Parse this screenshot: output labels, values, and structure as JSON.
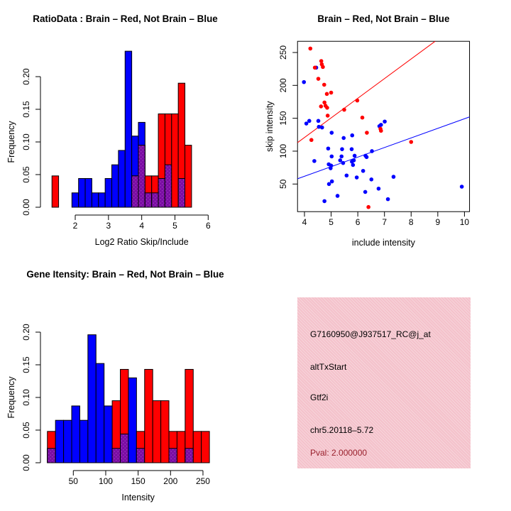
{
  "colors": {
    "red": "#ff0000",
    "blue": "#0000ff",
    "overlap_purple": "#7a0da3",
    "overlap_dot": "#a83ec9",
    "axis": "#000000",
    "title_text": "#000000",
    "pink_panel": "#f4c2cb",
    "pval_red": "#99202c"
  },
  "chart_data": [
    {
      "id": "ratio_hist",
      "type": "bar",
      "variant": "overlaid-histogram",
      "title": "RatioData : Brain – Red, Not Brain – Blue",
      "xlabel": "Log2 Ratio Skip/Include",
      "ylabel": "Frequency",
      "legend": {
        "red": "Brain",
        "blue": "Not Brain"
      },
      "x_ticks": [
        2,
        3,
        4,
        5,
        6
      ],
      "y_ticks": [
        {
          "v": 0.0,
          "label": "0.00"
        },
        {
          "v": 0.05,
          "label": "0.05"
        },
        {
          "v": 0.1,
          "label": "0.10"
        },
        {
          "v": 0.15,
          "label": "0.15"
        },
        {
          "v": 0.2,
          "label": "0.20"
        }
      ],
      "xlim": [
        1.1,
        6.1
      ],
      "ylim": [
        0,
        0.245
      ],
      "bin_width": 0.2,
      "bins": [
        {
          "x": 1.3,
          "blue": 0,
          "red": 0.048
        },
        {
          "x": 1.9,
          "blue": 0.022,
          "red": 0
        },
        {
          "x": 2.1,
          "blue": 0.044,
          "red": 0
        },
        {
          "x": 2.3,
          "blue": 0.044,
          "red": 0
        },
        {
          "x": 2.5,
          "blue": 0.022,
          "red": 0
        },
        {
          "x": 2.7,
          "blue": 0.022,
          "red": 0
        },
        {
          "x": 2.9,
          "blue": 0.044,
          "red": 0
        },
        {
          "x": 3.1,
          "blue": 0.065,
          "red": 0
        },
        {
          "x": 3.3,
          "blue": 0.087,
          "red": 0
        },
        {
          "x": 3.5,
          "blue": 0.239,
          "red": 0
        },
        {
          "x": 3.7,
          "blue": 0.109,
          "red": 0.048
        },
        {
          "x": 3.9,
          "blue": 0.13,
          "red": 0.095
        },
        {
          "x": 4.1,
          "blue": 0.022,
          "red": 0.048
        },
        {
          "x": 4.3,
          "blue": 0.022,
          "red": 0.048
        },
        {
          "x": 4.5,
          "blue": 0.044,
          "red": 0.143
        },
        {
          "x": 4.7,
          "blue": 0.065,
          "red": 0.143
        },
        {
          "x": 4.9,
          "blue": 0,
          "red": 0.143
        },
        {
          "x": 5.1,
          "blue": 0.044,
          "red": 0.19
        },
        {
          "x": 5.3,
          "blue": 0,
          "red": 0.095
        }
      ]
    },
    {
      "id": "intensity_scatter",
      "type": "scatter",
      "title": "Brain – Red, Not Brain – Blue",
      "xlabel": "include intensity",
      "ylabel": "skip intensity",
      "legend": {
        "red": "Brain",
        "blue": "Not Brain"
      },
      "x_ticks": [
        4,
        5,
        6,
        7,
        8,
        9,
        10
      ],
      "y_ticks": [
        {
          "v": 50,
          "label": "50"
        },
        {
          "v": 100,
          "label": "100"
        },
        {
          "v": 150,
          "label": "150"
        },
        {
          "v": 200,
          "label": "200"
        },
        {
          "v": 250,
          "label": "250"
        }
      ],
      "xlim": [
        3.74,
        10.19
      ],
      "ylim": [
        8,
        267
      ],
      "red_line": [
        [
          3.74,
          113
        ],
        [
          8.9,
          267
        ]
      ],
      "blue_line": [
        [
          3.74,
          58
        ],
        [
          10.19,
          152
        ]
      ],
      "red_points": [
        [
          4.22,
          256
        ],
        [
          4.26,
          117
        ],
        [
          4.39,
          227
        ],
        [
          4.52,
          210
        ],
        [
          4.62,
          168
        ],
        [
          4.63,
          237
        ],
        [
          4.65,
          232
        ],
        [
          4.69,
          228
        ],
        [
          4.74,
          201
        ],
        [
          4.75,
          174
        ],
        [
          4.79,
          169
        ],
        [
          4.84,
          187
        ],
        [
          4.85,
          166
        ],
        [
          4.87,
          154
        ],
        [
          5.0,
          189
        ],
        [
          5.49,
          163
        ],
        [
          5.98,
          177
        ],
        [
          6.17,
          151
        ],
        [
          6.34,
          128
        ],
        [
          6.4,
          15
        ],
        [
          6.85,
          134
        ],
        [
          6.87,
          131
        ],
        [
          8.0,
          114
        ]
      ],
      "blue_points": [
        [
          3.98,
          205
        ],
        [
          4.07,
          142
        ],
        [
          4.18,
          146
        ],
        [
          4.37,
          85
        ],
        [
          4.44,
          227
        ],
        [
          4.52,
          146
        ],
        [
          4.54,
          137
        ],
        [
          4.66,
          136
        ],
        [
          4.75,
          24
        ],
        [
          4.89,
          104
        ],
        [
          4.91,
          80
        ],
        [
          4.92,
          50
        ],
        [
          4.98,
          74
        ],
        [
          5.0,
          78
        ],
        [
          5.02,
          128
        ],
        [
          5.02,
          92
        ],
        [
          5.03,
          54
        ],
        [
          5.24,
          32
        ],
        [
          5.34,
          86
        ],
        [
          5.39,
          92
        ],
        [
          5.41,
          103
        ],
        [
          5.45,
          82
        ],
        [
          5.47,
          120
        ],
        [
          5.58,
          63
        ],
        [
          5.77,
          103
        ],
        [
          5.78,
          84
        ],
        [
          5.79,
          124
        ],
        [
          5.82,
          79
        ],
        [
          5.85,
          86
        ],
        [
          5.88,
          93
        ],
        [
          5.96,
          60
        ],
        [
          6.2,
          70
        ],
        [
          6.28,
          38
        ],
        [
          6.29,
          93
        ],
        [
          6.33,
          91
        ],
        [
          6.51,
          57
        ],
        [
          6.53,
          100
        ],
        [
          6.78,
          43
        ],
        [
          6.81,
          138
        ],
        [
          6.87,
          140
        ],
        [
          7.01,
          145
        ],
        [
          7.13,
          27
        ],
        [
          7.34,
          61
        ],
        [
          9.9,
          46
        ]
      ]
    },
    {
      "id": "gene_hist",
      "type": "bar",
      "variant": "overlaid-histogram",
      "title": "Gene Itensity: Brain – Red, Not Brain – Blue",
      "xlabel": "Intensity",
      "ylabel": "Frequency",
      "legend": {
        "red": "Brain",
        "blue": "Not Brain"
      },
      "x_ticks": [
        50,
        100,
        150,
        200,
        250
      ],
      "y_ticks": [
        {
          "v": 0.0,
          "label": "0.00"
        },
        {
          "v": 0.05,
          "label": "0.05"
        },
        {
          "v": 0.1,
          "label": "0.10"
        },
        {
          "v": 0.15,
          "label": "0.15"
        },
        {
          "v": 0.2,
          "label": "0.20"
        }
      ],
      "xlim": [
        5,
        262
      ],
      "ylim": [
        0,
        0.205
      ],
      "bin_width": 12.5,
      "bins": [
        {
          "x": 10,
          "blue": 0.022,
          "red": 0.048
        },
        {
          "x": 22.5,
          "blue": 0.065,
          "red": 0
        },
        {
          "x": 35,
          "blue": 0.065,
          "red": 0
        },
        {
          "x": 47.5,
          "blue": 0.087,
          "red": 0
        },
        {
          "x": 60,
          "blue": 0.065,
          "red": 0
        },
        {
          "x": 72.5,
          "blue": 0.196,
          "red": 0
        },
        {
          "x": 85,
          "blue": 0.152,
          "red": 0
        },
        {
          "x": 97.5,
          "blue": 0.087,
          "red": 0
        },
        {
          "x": 110,
          "blue": 0.022,
          "red": 0.095
        },
        {
          "x": 122.5,
          "blue": 0.044,
          "red": 0.143
        },
        {
          "x": 135,
          "blue": 0.13,
          "red": 0
        },
        {
          "x": 147.5,
          "blue": 0.022,
          "red": 0.048
        },
        {
          "x": 160,
          "blue": 0,
          "red": 0.143
        },
        {
          "x": 172.5,
          "blue": 0,
          "red": 0.095
        },
        {
          "x": 185,
          "blue": 0,
          "red": 0.095
        },
        {
          "x": 197.5,
          "blue": 0.022,
          "red": 0.048
        },
        {
          "x": 210,
          "blue": 0,
          "red": 0.048
        },
        {
          "x": 222.5,
          "blue": 0.022,
          "red": 0.143
        },
        {
          "x": 235,
          "blue": 0,
          "red": 0.048
        },
        {
          "x": 247.5,
          "blue": 0,
          "red": 0.048
        }
      ]
    }
  ],
  "info_panel": {
    "lines": [
      {
        "text": "G7160950@J937517_RC@j_at",
        "color": "black"
      },
      {
        "text": "altTxStart",
        "color": "black"
      },
      {
        "text": "Gtf2i",
        "color": "black"
      },
      {
        "text": "chr5.20118–5.72",
        "color": "black"
      },
      {
        "text": "Pval: 2.000000",
        "color": "pval_red"
      }
    ]
  }
}
